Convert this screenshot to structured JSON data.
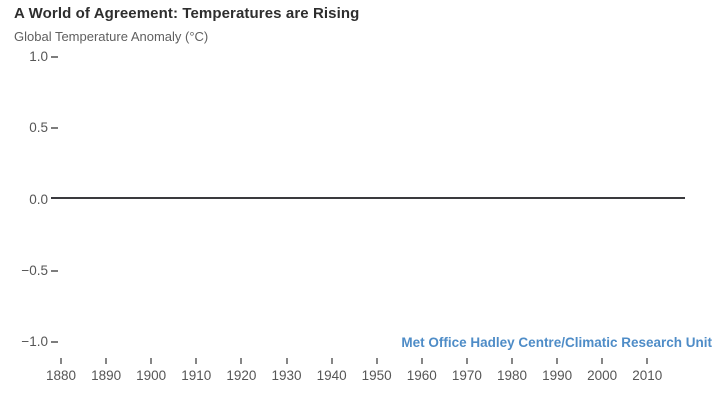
{
  "header": {
    "title": "A World of Agreement: Temperatures are Rising",
    "subtitle": "Global Temperature Anomaly (°C)"
  },
  "attribution": {
    "label": "Met Office Hadley Centre/Climatic Research Unit",
    "color": "#4e8cc7"
  },
  "colors": {
    "title_text": "#2e2e2e",
    "axis_text": "#565656",
    "tick_mark": "#7d7d7d",
    "baseline": "#3a3a3e",
    "background": "#ffffff"
  },
  "chart_data": {
    "type": "line",
    "title": "A World of Agreement: Temperatures are Rising",
    "ylabel": "Global Temperature Anomaly (°C)",
    "xlabel": "",
    "y_tick_labels": [
      "1.0",
      "0.5",
      "0.0",
      "−0.5",
      "−1.0"
    ],
    "y_tick_values": [
      1.0,
      0.5,
      0.0,
      -0.5,
      -1.0
    ],
    "ylim": [
      -1.15,
      1.15
    ],
    "x_tick_labels": [
      "1880",
      "1890",
      "1900",
      "1910",
      "1920",
      "1930",
      "1940",
      "1950",
      "1960",
      "1970",
      "1980",
      "1990",
      "2000",
      "2010"
    ],
    "x_tick_values": [
      1880,
      1890,
      1900,
      1910,
      1920,
      1930,
      1940,
      1950,
      1960,
      1970,
      1980,
      1990,
      2000,
      2010
    ],
    "xlim": [
      1878,
      2019
    ],
    "grid": false,
    "series": [],
    "baseline": {
      "value": 0.0,
      "color": "#3a3a3e"
    },
    "legend_entries": [
      "Met Office Hadley Centre/Climatic Research Unit"
    ],
    "legend_position": "bottom-right"
  }
}
